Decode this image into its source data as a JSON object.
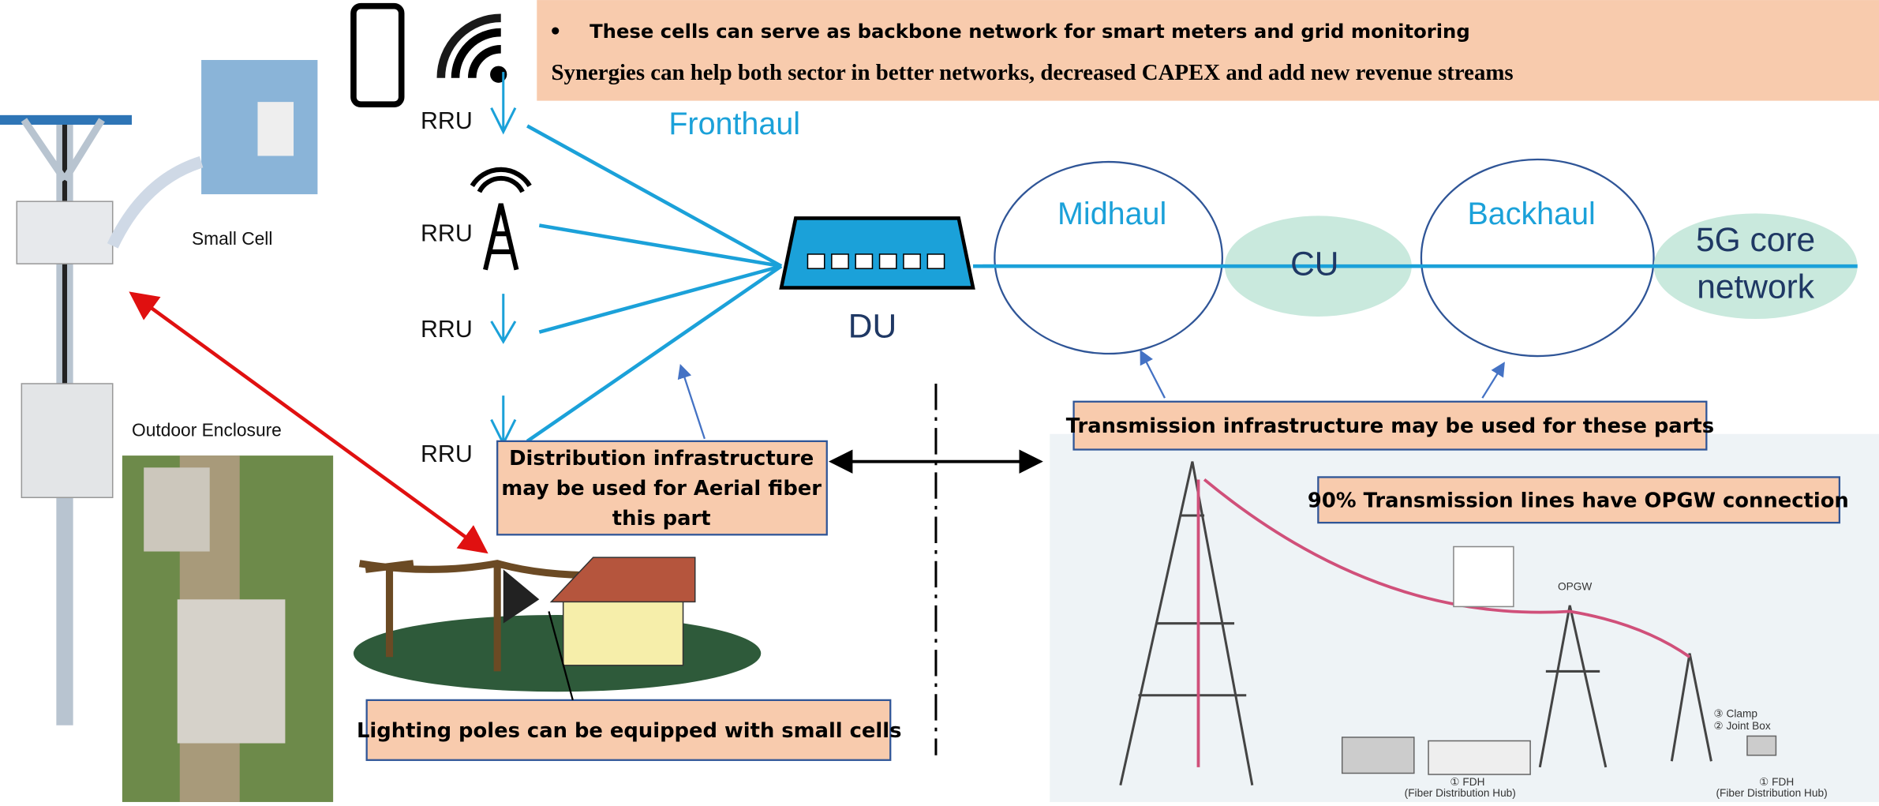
{
  "header": {
    "bullet": "•",
    "bullet_text": "These cells can serve as backbone network for smart meters and grid monitoring",
    "headline": "Synergies can help both sector in better networks, decreased CAPEX and add new revenue streams"
  },
  "nodes": {
    "rru": [
      "RRU",
      "RRU",
      "RRU",
      "RRU"
    ],
    "fronthaul": "Fronthaul",
    "du": "DU",
    "midhaul": "Midhaul",
    "cu": "CU",
    "backhaul": "Backhaul",
    "core": [
      "5G core",
      "network"
    ],
    "small_cell": "Small Cell",
    "outdoor_enclosure": "Outdoor Enclosure"
  },
  "callouts": {
    "distribution": [
      "Distribution infrastructure",
      "may be used for Aerial fiber",
      "this part"
    ],
    "transmission": "Transmission infrastructure may be used for these parts",
    "opgw_share": "90% Transmission lines have OPGW connection",
    "lighting": "Lighting poles can be equipped with small cells"
  },
  "photo_labels": {
    "opgw": "OPGW",
    "clamp": "③ Clamp",
    "joint_box": "② Joint Box",
    "fdh_1": "① FDH",
    "fdh_1_sub": "(Fiber Distribution Hub)",
    "fdh_2": "① FDH",
    "fdh_2_sub": "(Fiber Distribution Hub)"
  }
}
